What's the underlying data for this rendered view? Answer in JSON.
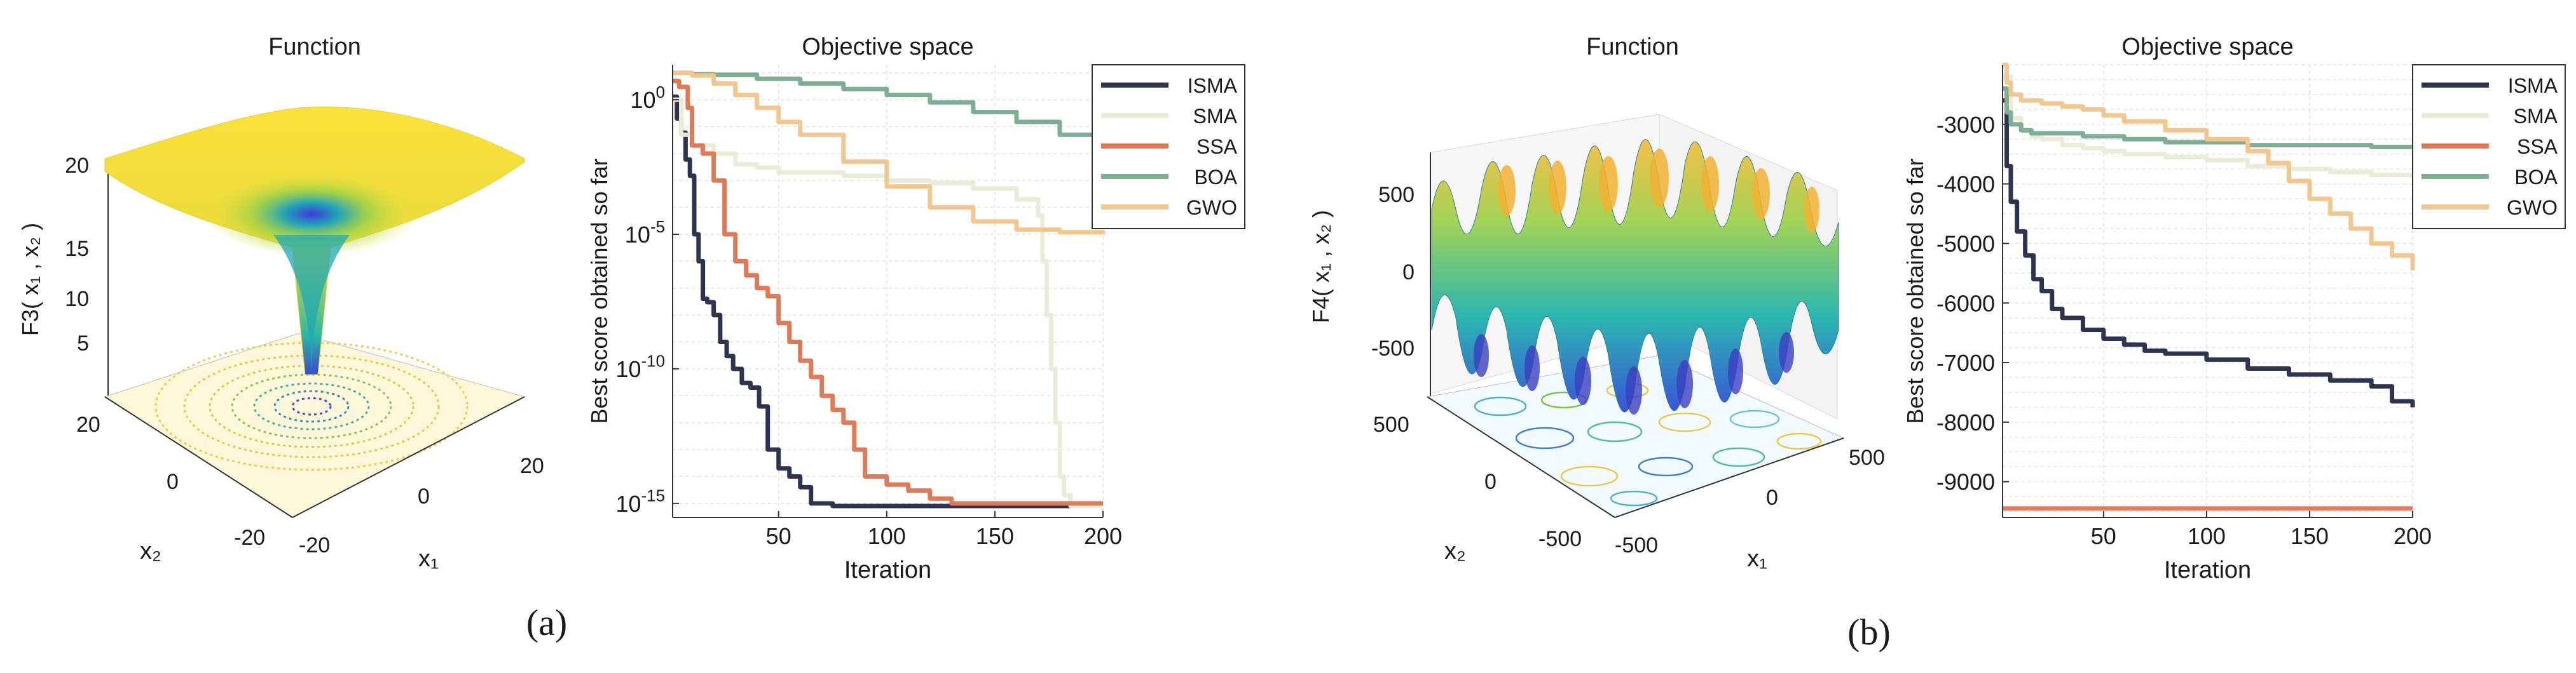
{
  "panels": [
    {
      "caption": "(a)",
      "surface": {
        "title": "Function",
        "zlabel": "F3( x₁ , x₂ )",
        "zticks": [
          "20",
          "15",
          "10",
          "5"
        ],
        "x2label": "x₂",
        "x1label": "x₁",
        "x2ticks": [
          "20",
          "0",
          "-20"
        ],
        "x1ticks": [
          "-20",
          "0",
          "20"
        ]
      }
    },
    {
      "caption": "(b)",
      "surface": {
        "title": "Function",
        "zlabel": "F4( x₁ , x₂ )",
        "zticks": [
          "500",
          "0",
          "-500"
        ],
        "x2label": "x₂",
        "x1label": "x₁",
        "x2ticks": [
          "500",
          "0",
          "-500"
        ],
        "x1ticks": [
          "-500",
          "0",
          "500"
        ]
      }
    }
  ],
  "colors": {
    "ISMA": "#2d3450",
    "SMA": "#ecebd8",
    "SSA": "#df7a58",
    "BOA": "#7eae93",
    "GWO": "#f2c68e",
    "axis": "#333333",
    "grid": "#dedede"
  },
  "chart_data": [
    {
      "type": "line",
      "title": "Objective space",
      "xlabel": "Iteration",
      "ylabel": "Best score obtained so far",
      "yscale": "log",
      "xlim": [
        1,
        200
      ],
      "ylim": [
        3e-16,
        20
      ],
      "xticks": [
        50,
        100,
        150,
        200
      ],
      "xtick_labels": [
        "50",
        "100",
        "150",
        "200"
      ],
      "yticks": [
        1,
        1e-05,
        1e-10,
        1e-15
      ],
      "ytick_labels": [
        "10^0",
        "10^-5",
        "10^-10",
        "10^-15"
      ],
      "legend_position": "top-right",
      "series": [
        {
          "name": "ISMA",
          "x": [
            1,
            3,
            5,
            7,
            9,
            11,
            13,
            15,
            17,
            20,
            23,
            26,
            29,
            33,
            37,
            41,
            45,
            50,
            55,
            60,
            65,
            70,
            75,
            80,
            200
          ],
          "y": [
            1.3,
            0.2,
            0.06,
            0.006,
            0.0015,
            1e-05,
            1e-06,
            4e-08,
            3e-08,
            1e-08,
            1e-09,
            3e-10,
            1e-10,
            3e-11,
            2e-11,
            4e-12,
            1e-13,
            2e-14,
            1e-14,
            4e-15,
            1e-15,
            1e-15,
            8e-16,
            8e-16,
            8e-16
          ]
        },
        {
          "name": "SMA",
          "x": [
            1,
            5,
            10,
            15,
            20,
            30,
            40,
            50,
            60,
            80,
            100,
            120,
            140,
            160,
            170,
            172,
            174,
            176,
            178,
            180,
            182,
            185,
            190,
            200
          ],
          "y": [
            1,
            0.05,
            0.02,
            0.02,
            0.01,
            0.004,
            0.003,
            0.002,
            0.002,
            0.0015,
            0.001,
            0.0008,
            0.0005,
            0.0002,
            5e-05,
            1e-06,
            1e-08,
            1e-10,
            1e-12,
            1e-14,
            2e-15,
            8e-16,
            8e-16,
            8e-16
          ]
        },
        {
          "name": "SSA",
          "x": [
            1,
            4,
            8,
            10,
            15,
            20,
            25,
            30,
            35,
            40,
            45,
            50,
            55,
            60,
            65,
            70,
            75,
            80,
            85,
            90,
            100,
            110,
            120,
            130,
            200
          ],
          "y": [
            5,
            3,
            0.5,
            0.02,
            0.01,
            0.001,
            1e-05,
            1e-06,
            3e-07,
            1e-07,
            5e-08,
            5e-09,
            1e-09,
            2e-10,
            5e-11,
            1e-11,
            3e-12,
            1e-12,
            1e-13,
            1e-14,
            5e-15,
            3e-15,
            1.5e-15,
            1e-15,
            1e-15
          ]
        },
        {
          "name": "BOA",
          "x": [
            1,
            10,
            20,
            40,
            60,
            80,
            100,
            120,
            140,
            160,
            180,
            200
          ],
          "y": [
            10,
            9,
            8.5,
            6,
            4,
            2.5,
            1.5,
            0.8,
            0.35,
            0.15,
            0.05,
            0.02
          ]
        },
        {
          "name": "GWO",
          "x": [
            1,
            10,
            20,
            30,
            40,
            50,
            60,
            80,
            100,
            120,
            140,
            160,
            180,
            200
          ],
          "y": [
            10,
            8,
            4,
            1.5,
            0.5,
            0.15,
            0.05,
            0.005,
            0.0006,
            0.0001,
            3e-05,
            1.5e-05,
            1.2e-05,
            1e-05
          ]
        }
      ]
    },
    {
      "type": "line",
      "title": "Objective space",
      "xlabel": "Iteration",
      "ylabel": "Best score obtained so far",
      "yscale": "linear",
      "xlim": [
        1,
        200
      ],
      "ylim": [
        -9600,
        -2000
      ],
      "xticks": [
        50,
        100,
        150,
        200
      ],
      "xtick_labels": [
        "50",
        "100",
        "150",
        "200"
      ],
      "yticks": [
        -3000,
        -4000,
        -5000,
        -6000,
        -7000,
        -8000,
        -9000
      ],
      "ytick_labels": [
        "-3000",
        "-4000",
        "-5000",
        "-6000",
        "-7000",
        "-8000",
        "-9000"
      ],
      "legend_position": "top-right",
      "series": [
        {
          "name": "ISMA",
          "x": [
            1,
            3,
            5,
            8,
            12,
            16,
            20,
            25,
            30,
            40,
            50,
            60,
            70,
            80,
            100,
            120,
            140,
            160,
            180,
            190,
            200
          ],
          "y": [
            -2600,
            -3700,
            -4300,
            -4800,
            -5200,
            -5600,
            -5800,
            -6100,
            -6250,
            -6450,
            -6600,
            -6700,
            -6800,
            -6850,
            -6950,
            -7100,
            -7200,
            -7300,
            -7400,
            -7650,
            -7750
          ]
        },
        {
          "name": "SMA",
          "x": [
            1,
            5,
            10,
            15,
            20,
            30,
            40,
            50,
            60,
            80,
            100,
            120,
            140,
            160,
            180,
            200
          ],
          "y": [
            -2200,
            -2900,
            -3100,
            -3200,
            -3250,
            -3350,
            -3400,
            -3450,
            -3500,
            -3550,
            -3600,
            -3700,
            -3750,
            -3800,
            -3850,
            -3900
          ]
        },
        {
          "name": "SSA",
          "x": [
            1,
            200
          ],
          "y": [
            -9450,
            -9450
          ]
        },
        {
          "name": "BOA",
          "x": [
            1,
            3,
            5,
            10,
            15,
            20,
            40,
            60,
            80,
            100,
            120,
            140,
            160,
            180,
            200
          ],
          "y": [
            -2400,
            -2800,
            -3000,
            -3100,
            -3150,
            -3150,
            -3200,
            -3250,
            -3300,
            -3300,
            -3350,
            -3350,
            -3350,
            -3380,
            -3380
          ]
        },
        {
          "name": "GWO",
          "x": [
            1,
            3,
            5,
            10,
            20,
            30,
            40,
            50,
            60,
            80,
            100,
            120,
            130,
            140,
            150,
            160,
            170,
            180,
            190,
            200
          ],
          "y": [
            -2000,
            -2300,
            -2500,
            -2600,
            -2650,
            -2700,
            -2750,
            -2850,
            -2950,
            -3100,
            -3250,
            -3450,
            -3650,
            -3950,
            -4250,
            -4500,
            -4750,
            -5000,
            -5200,
            -5450
          ]
        }
      ]
    }
  ]
}
